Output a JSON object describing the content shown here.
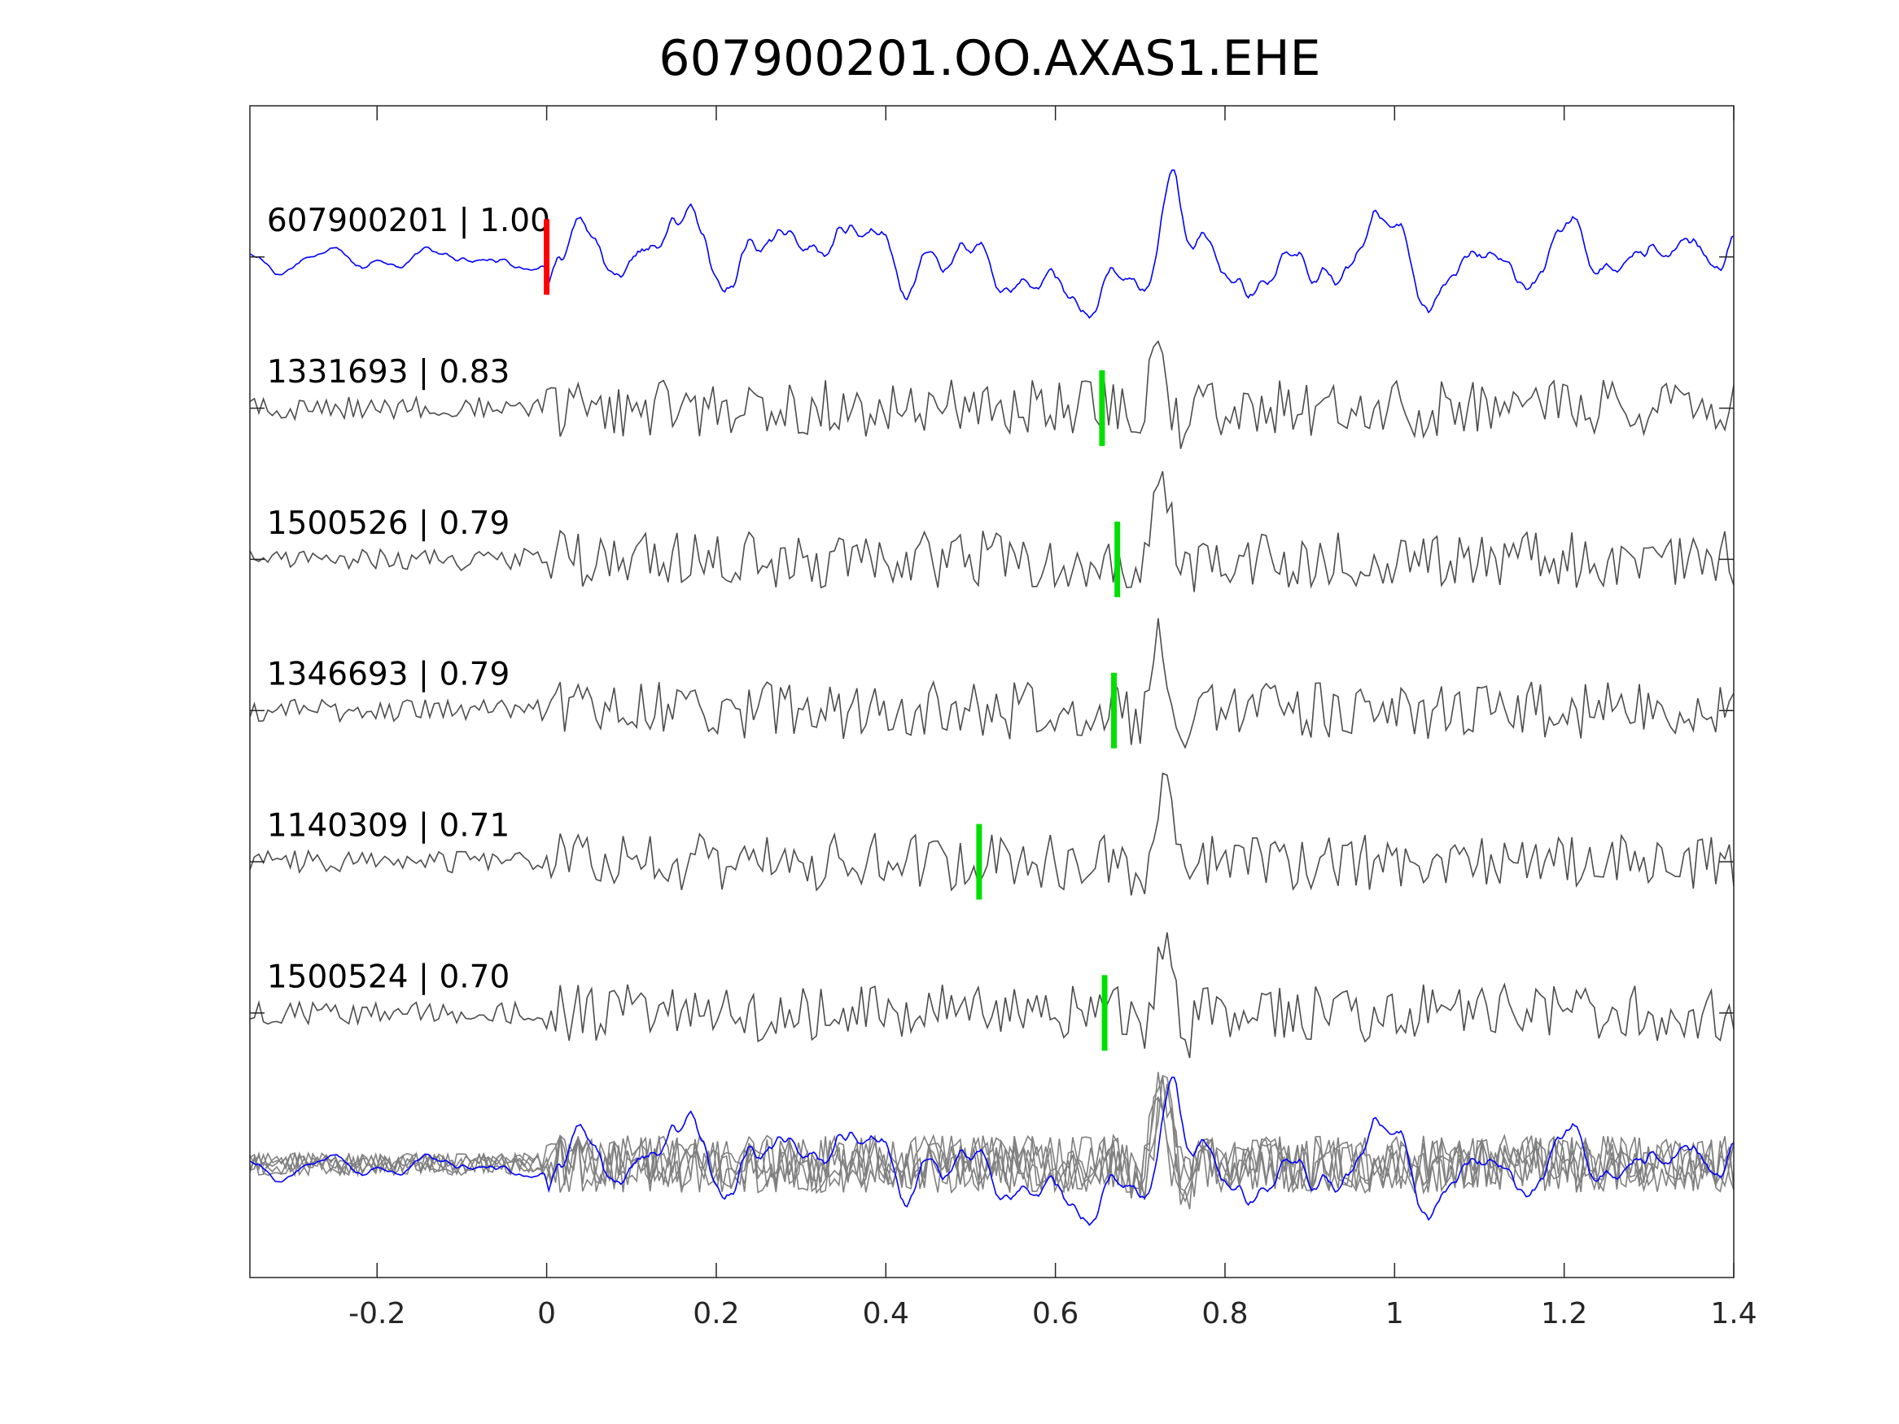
{
  "chart_data": {
    "type": "line",
    "title": "607900201.OO.AXAS1.EHE",
    "xlabel": "",
    "ylabel": "",
    "xlim": [
      -0.35,
      1.4
    ],
    "ylim": [
      -0.75,
      7
    ],
    "xticks": [
      -0.2,
      0,
      0.2,
      0.4,
      0.6,
      0.8,
      1,
      1.2,
      1.4
    ],
    "xtick_labels": [
      "-0.2",
      "0",
      "0.2",
      "0.4",
      "0.6",
      "0.8",
      "1",
      "1.2",
      "1.4"
    ],
    "grid": false,
    "colors": {
      "template": "#0000ff",
      "trace": "#4d4d4d",
      "stack": "#808080",
      "reference_pick": "#ff0000",
      "pick": "#00e000",
      "axis": "#262626"
    },
    "traces": [
      {
        "label": "607900201 | 1.00",
        "offset": 6,
        "kind": "template",
        "pick": 0.0,
        "pick_kind": "reference",
        "event_time": 0.735,
        "seed": 11
      },
      {
        "label": "1331693 | 0.83",
        "offset": 5,
        "kind": "trace",
        "pick": 0.655,
        "pick_kind": "match",
        "event_time": 0.72,
        "seed": 23
      },
      {
        "label": "1500526 | 0.79",
        "offset": 4,
        "kind": "trace",
        "pick": 0.673,
        "pick_kind": "match",
        "event_time": 0.725,
        "seed": 37
      },
      {
        "label": "1346693 | 0.79",
        "offset": 3,
        "kind": "trace",
        "pick": 0.669,
        "pick_kind": "match",
        "event_time": 0.722,
        "seed": 41
      },
      {
        "label": "1140309 | 0.71",
        "offset": 2,
        "kind": "trace",
        "pick": 0.51,
        "pick_kind": "match",
        "event_time": 0.73,
        "seed": 53
      },
      {
        "label": "1500524 | 0.70",
        "offset": 1,
        "kind": "trace",
        "pick": 0.658,
        "pick_kind": "match",
        "event_time": 0.728,
        "seed": 67
      }
    ],
    "stack_offset": 0
  }
}
